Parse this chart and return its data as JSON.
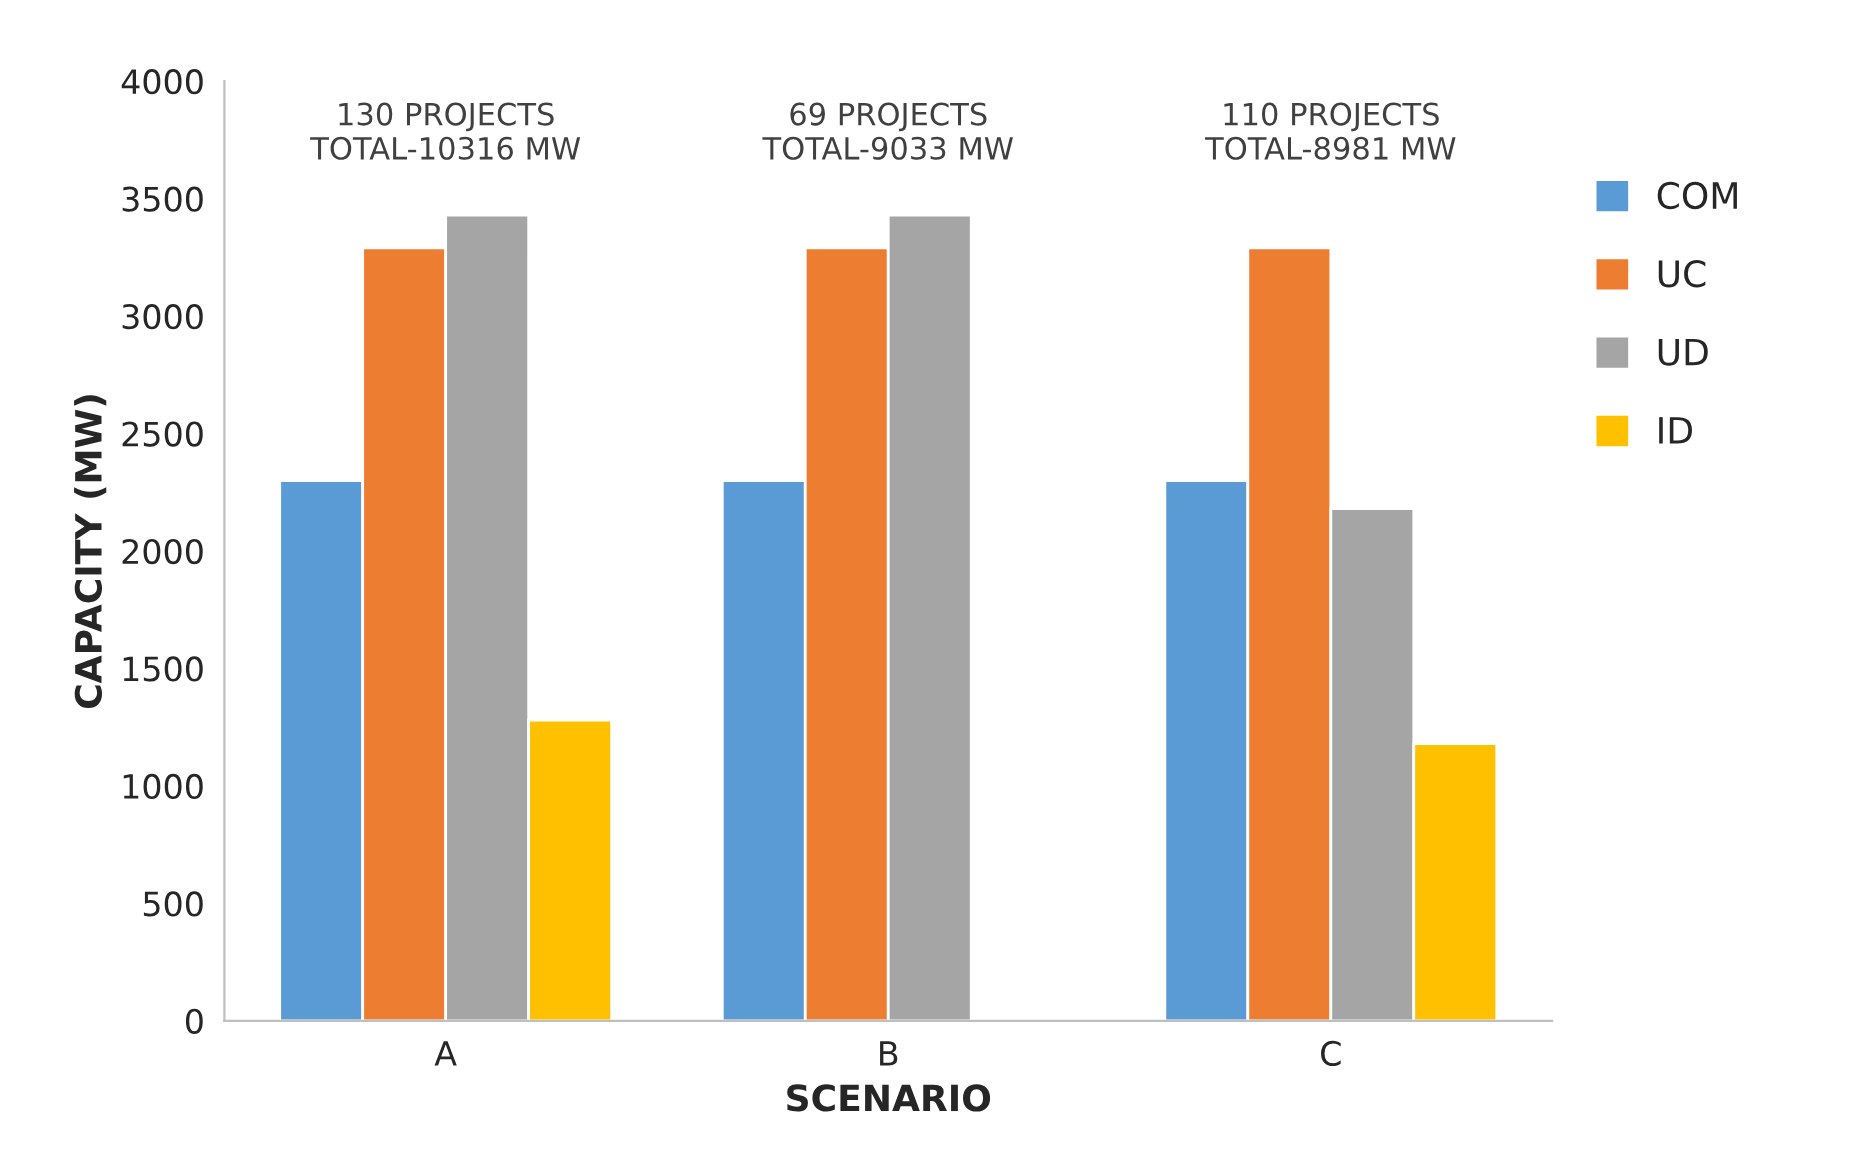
{
  "chart_data": {
    "type": "bar",
    "xlabel": "SCENARIO",
    "ylabel": "CAPACITY (MW)",
    "categories": [
      "A",
      "B",
      "C"
    ],
    "series": [
      {
        "name": "COM",
        "color": "#5b9bd5",
        "values": [
          2300,
          2300,
          2300
        ]
      },
      {
        "name": "UC",
        "color": "#ed7d31",
        "values": [
          3290,
          3290,
          3290
        ]
      },
      {
        "name": "UD",
        "color": "#a5a5a5",
        "values": [
          3430,
          3430,
          2180
        ]
      },
      {
        "name": "ID",
        "color": "#ffc000",
        "values": [
          1280,
          null,
          1180
        ]
      }
    ],
    "ylim": [
      0,
      4000
    ],
    "yticks": [
      0,
      500,
      1000,
      1500,
      2000,
      2500,
      3000,
      3500,
      4000
    ],
    "grid": false,
    "legend": "right",
    "annotations": [
      "130 PROJECTS\nTOTAL-10316 MW",
      "69 PROJECTS\nTOTAL-9033 MW",
      "110 PROJECTS\nTOTAL-8981 MW"
    ]
  }
}
